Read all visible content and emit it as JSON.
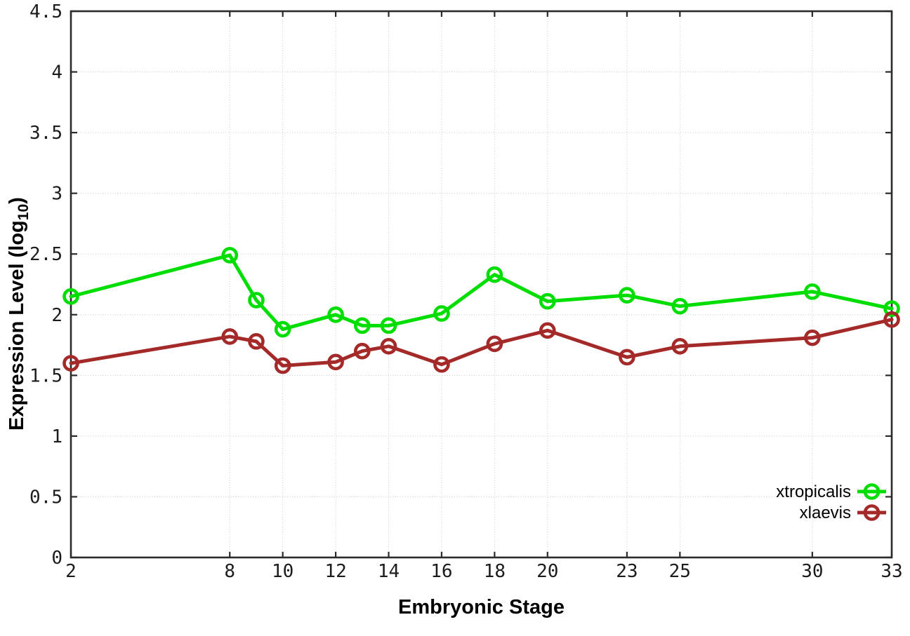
{
  "labels": {
    "xlabel": "Embryonic Stage",
    "ylabel_parts": {
      "prefix": "Expression Level (log",
      "sub": "10",
      "suffix": ")"
    }
  },
  "colors": {
    "background": "#ffffff",
    "axis": "#2b2b2b",
    "grid": "#c9c9c9",
    "xtropicalis": "#00dd00",
    "xlaevis": "#a42a2a"
  },
  "chart_data": {
    "type": "line",
    "title": "",
    "xlabel": "Embryonic Stage",
    "ylabel": "Expression Level (log10)",
    "xlim": [
      2,
      33
    ],
    "ylim": [
      0,
      4.5
    ],
    "grid": true,
    "legend_position": "bottom-right",
    "x": [
      2,
      8,
      9,
      10,
      12,
      13,
      14,
      16,
      18,
      20,
      23,
      25,
      30,
      33
    ],
    "x_tick_values": [
      2,
      8,
      10,
      12,
      14,
      16,
      18,
      20,
      23,
      25,
      30,
      33
    ],
    "x_tick_labels": [
      "2",
      "8",
      "10",
      "12",
      "14",
      "16",
      "18",
      "20",
      "23",
      "25",
      "30",
      "33"
    ],
    "y_tick_values": [
      0,
      0.5,
      1,
      1.5,
      2,
      2.5,
      3,
      3.5,
      4,
      4.5
    ],
    "y_tick_labels": [
      "0",
      "0.5",
      "1",
      "1.5",
      "2",
      "2.5",
      "3",
      "3.5",
      "4",
      "4.5"
    ],
    "series": [
      {
        "name": "xtropicalis",
        "color": "#00dd00",
        "values": [
          2.15,
          2.49,
          2.12,
          1.88,
          2.0,
          1.91,
          1.91,
          2.01,
          2.33,
          2.11,
          2.16,
          2.07,
          2.19,
          2.05
        ]
      },
      {
        "name": "xlaevis",
        "color": "#a42a2a",
        "values": [
          1.6,
          1.82,
          1.78,
          1.58,
          1.61,
          1.7,
          1.74,
          1.59,
          1.76,
          1.87,
          1.65,
          1.74,
          1.81,
          1.96
        ]
      }
    ]
  }
}
